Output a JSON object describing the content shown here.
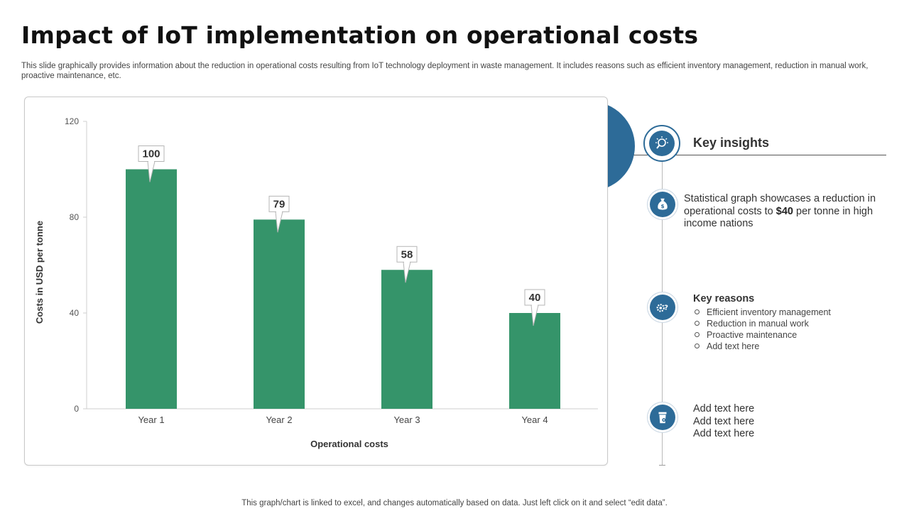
{
  "page": {
    "title": "Impact of IoT implementation on operational costs",
    "subtitle": "This slide graphically provides information about the reduction in operational costs resulting from IoT technology deployment in waste management. It includes reasons such as efficient inventory management, reduction in manual work, proactive maintenance, etc.",
    "footer": "This graph/chart is linked to excel,  and changes automatically based on data. Just left click on it and select “edit data”."
  },
  "chart_data": {
    "type": "bar",
    "categories": [
      "Year 1",
      "Year 2",
      "Year 3",
      "Year 4"
    ],
    "values": [
      100,
      79,
      58,
      40
    ],
    "data_labels": [
      "100",
      "79",
      "58",
      "40"
    ],
    "title": "",
    "xlabel": "Operational costs",
    "ylabel": "Costs in USD per tonne",
    "ylim": [
      0,
      120
    ],
    "yticks": [
      0,
      40,
      80,
      120
    ],
    "ytick_labels": [
      "0",
      "40",
      "80",
      "120"
    ],
    "grid": false,
    "legend": "none",
    "bar_color": "#35946a"
  },
  "insights": {
    "header": "Key insights",
    "statistic": {
      "before": "Statistical graph showcases a reduction in operational costs to ",
      "highlight": "$40",
      "after": " per tonne in high income nations"
    },
    "reasons": {
      "title": "Key reasons",
      "items": [
        "Efficient inventory management",
        "Reduction in manual work",
        "Proactive maintenance",
        "Add text here"
      ]
    },
    "placeholder_lines": [
      "Add text here",
      "Add text here",
      "Add text here"
    ]
  },
  "theme": {
    "accent": "#2d6b98",
    "icons": [
      "lightbulb-search-icon",
      "money-bag-icon",
      "gear-question-icon",
      "waste-bin-icon"
    ]
  }
}
